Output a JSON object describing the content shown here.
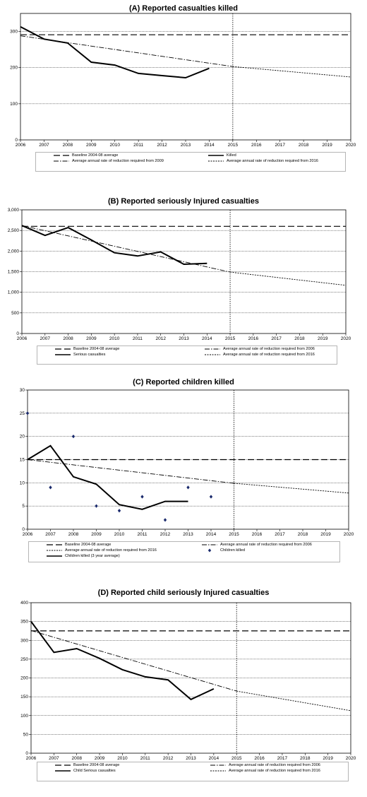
{
  "chart_data": [
    {
      "id": "A",
      "type": "line",
      "title": "(A) Reported casualties killed",
      "xlim": [
        2006,
        2020
      ],
      "ylim": [
        0,
        350
      ],
      "yticks": [
        0,
        100,
        200,
        300
      ],
      "ytick_labels": [
        "0",
        "100",
        "200",
        "300"
      ],
      "xticks": [
        2006,
        2007,
        2008,
        2009,
        2010,
        2011,
        2012,
        2013,
        2014,
        2015,
        2016,
        2017,
        2018,
        2019,
        2020
      ],
      "grid": "horizontal",
      "vline_x": 2015,
      "series": [
        {
          "name": "Baseline 2004-08 average",
          "style": "dashed",
          "x": [
            2006,
            2020
          ],
          "y": [
            291,
            291
          ]
        },
        {
          "name": "Killed",
          "style": "solid",
          "x": [
            2006,
            2007,
            2008,
            2009,
            2010,
            2011,
            2012,
            2013,
            2014
          ],
          "y": [
            313,
            279,
            268,
            215,
            207,
            184,
            178,
            172,
            198
          ]
        },
        {
          "name": "Average annual rate of reduction required from 2009",
          "style": "dashdot",
          "x": [
            2006,
            2015
          ],
          "y": [
            288,
            203
          ]
        },
        {
          "name": "Average annual rate of reduction required from 2016",
          "style": "dotted",
          "x": [
            2015,
            2020
          ],
          "y": [
            203,
            174
          ]
        }
      ],
      "legend": [
        {
          "name": "Baseline 2004-08 average",
          "style": "dashed"
        },
        {
          "name": "Killed",
          "style": "solid"
        },
        {
          "name": "Average annual rate of reduction required from 2009",
          "style": "dashdot"
        },
        {
          "name": "Average annual rate of reduction required from 2016",
          "style": "dotted"
        }
      ]
    },
    {
      "id": "B",
      "type": "line",
      "title": "(B) Reported seriously Injured casualties",
      "xlim": [
        2006,
        2020
      ],
      "ylim": [
        0,
        3000
      ],
      "yticks": [
        0,
        500,
        1000,
        1500,
        2000,
        2500,
        3000
      ],
      "ytick_labels": [
        "0",
        "500",
        "1,000",
        "1,500",
        "2,000",
        "2,500",
        "3,000"
      ],
      "xticks": [
        2006,
        2007,
        2008,
        2009,
        2010,
        2011,
        2012,
        2013,
        2014,
        2015,
        2016,
        2017,
        2018,
        2019,
        2020
      ],
      "grid": "horizontal",
      "vline_x": 2015,
      "series": [
        {
          "name": "Baseline 2004-08 average",
          "style": "dashed",
          "x": [
            2006,
            2020
          ],
          "y": [
            2600,
            2600
          ]
        },
        {
          "name": "Serious casualties",
          "style": "solid",
          "x": [
            2006,
            2007,
            2008,
            2009,
            2010,
            2011,
            2012,
            2013,
            2014
          ],
          "y": [
            2620,
            2380,
            2570,
            2270,
            1960,
            1880,
            1980,
            1680,
            1700
          ]
        },
        {
          "name": "Average annual rate of reduction required from 2006",
          "style": "dashdot",
          "x": [
            2006,
            2015
          ],
          "y": [
            2620,
            1490
          ]
        },
        {
          "name": "Average annual rate of reduction required from 2016",
          "style": "dotted",
          "x": [
            2015,
            2020
          ],
          "y": [
            1490,
            1170
          ]
        }
      ],
      "legend": [
        {
          "name": "Baseline 2004-08 average",
          "style": "dashed"
        },
        {
          "name": "Average annual rate of reduction required from 2006",
          "style": "dashdot"
        },
        {
          "name": "Serious casualties",
          "style": "solid"
        },
        {
          "name": "Average annual rate of reduction required from 2016",
          "style": "dotted"
        }
      ]
    },
    {
      "id": "C",
      "type": "line",
      "title": "(C) Reported children killed",
      "xlim": [
        2006,
        2020
      ],
      "ylim": [
        0,
        30
      ],
      "yticks": [
        0,
        5,
        10,
        15,
        20,
        25,
        30
      ],
      "ytick_labels": [
        "0",
        "5",
        "10",
        "15",
        "20",
        "25",
        "30"
      ],
      "xticks": [
        2006,
        2007,
        2008,
        2009,
        2010,
        2011,
        2012,
        2013,
        2014,
        2015,
        2016,
        2017,
        2018,
        2019,
        2020
      ],
      "grid": "horizontal",
      "vline_x": 2015,
      "series": [
        {
          "name": "Baseline 2004-08 average",
          "style": "dashed",
          "x": [
            2006,
            2020
          ],
          "y": [
            15,
            15
          ]
        },
        {
          "name": "Average annual rate of reduction required from 2006",
          "style": "dashdot",
          "x": [
            2006,
            2015
          ],
          "y": [
            15,
            9.9
          ]
        },
        {
          "name": "Average annual rate of reduction required from 2016",
          "style": "dotted",
          "x": [
            2015,
            2020
          ],
          "y": [
            9.9,
            7.8
          ]
        },
        {
          "name": "Children killed",
          "style": "diamond",
          "x": [
            2006,
            2007,
            2008,
            2009,
            2010,
            2011,
            2012,
            2013,
            2014
          ],
          "y": [
            25,
            9,
            20,
            5,
            4,
            7,
            2,
            9,
            7
          ]
        },
        {
          "name": "Children killed (3 year average)",
          "style": "solid",
          "x": [
            2006,
            2007,
            2008,
            2009,
            2010,
            2011,
            2012,
            2013
          ],
          "y": [
            15,
            18,
            11.3,
            9.7,
            5.3,
            4.3,
            6,
            6
          ]
        }
      ],
      "legend": [
        {
          "name": "Baseline 2004-08 average",
          "style": "dashed"
        },
        {
          "name": "Average annual rate of reduction required from 2006",
          "style": "dashdot"
        },
        {
          "name": "Average annual rate of reduction required from 2016",
          "style": "dotted"
        },
        {
          "name": "Children killed",
          "style": "diamond"
        },
        {
          "name": "Children killed (3 year average)",
          "style": "solid"
        }
      ]
    },
    {
      "id": "D",
      "type": "line",
      "title": "(D) Reported child seriously Injured casualties",
      "xlim": [
        2006,
        2020
      ],
      "ylim": [
        0,
        400
      ],
      "yticks": [
        0,
        50,
        100,
        150,
        200,
        250,
        300,
        350,
        400
      ],
      "ytick_labels": [
        "0",
        "50",
        "100",
        "150",
        "200",
        "250",
        "300",
        "350",
        "400"
      ],
      "xticks": [
        2006,
        2007,
        2008,
        2009,
        2010,
        2011,
        2012,
        2013,
        2014,
        2015,
        2016,
        2017,
        2018,
        2019,
        2020
      ],
      "grid": "horizontal",
      "vline_x": 2015,
      "series": [
        {
          "name": "Baseline 2004-08 average",
          "style": "dashed",
          "x": [
            2006,
            2020
          ],
          "y": [
            325,
            325
          ]
        },
        {
          "name": "Child Serious casualties",
          "style": "solid",
          "x": [
            2006,
            2007,
            2008,
            2009,
            2010,
            2011,
            2012,
            2013,
            2014
          ],
          "y": [
            350,
            268,
            278,
            252,
            222,
            203,
            195,
            143,
            171
          ]
        },
        {
          "name": "Average annual rate of reduction required from 2006",
          "style": "dashdot",
          "x": [
            2006,
            2015
          ],
          "y": [
            326,
            165
          ]
        },
        {
          "name": "Average annual rate of reduction required from 2016",
          "style": "dotted",
          "x": [
            2015,
            2020
          ],
          "y": [
            165,
            113
          ]
        }
      ],
      "legend": [
        {
          "name": "Baseline 2004-08 average",
          "style": "dashed"
        },
        {
          "name": "Average annual rate of reduction required from 2006",
          "style": "dashdot"
        },
        {
          "name": "Child Serious casualties",
          "style": "solid"
        },
        {
          "name": "Average annual rate of reduction required from 2016",
          "style": "dotted"
        }
      ]
    }
  ]
}
